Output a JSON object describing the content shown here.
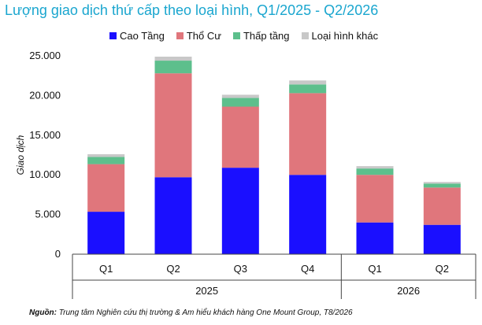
{
  "title": "Lượng giao dịch thứ cấp theo loại hình, Q1/2025 - Q2/2026",
  "source": {
    "label": "Nguồn:",
    "text": " Trung tâm Nghiên cứu thị trường & Am hiểu khách hàng One Mount Group, T8/2026"
  },
  "colors": {
    "cao_tang": "#1a0fff",
    "tho_cu": "#e0767c",
    "thap_tang": "#5dbf8c",
    "khac": "#c8c8c8"
  },
  "chart_data": {
    "type": "bar",
    "stacked": true,
    "categories": [
      "Q1",
      "Q2",
      "Q3",
      "Q4",
      "Q1",
      "Q2"
    ],
    "groups": [
      {
        "label": "2025",
        "categories": [
          "Q1",
          "Q2",
          "Q3",
          "Q4"
        ]
      },
      {
        "label": "2026",
        "categories": [
          "Q1",
          "Q2"
        ]
      }
    ],
    "series": [
      {
        "name": "Cao Tầng",
        "color": "#1a0fff",
        "values": [
          5350,
          9700,
          10900,
          10000,
          4000,
          3700
        ]
      },
      {
        "name": "Thổ Cư",
        "color": "#e0767c",
        "values": [
          6000,
          13100,
          7700,
          10300,
          6000,
          4700
        ]
      },
      {
        "name": "Thấp tầng",
        "color": "#5dbf8c",
        "values": [
          900,
          1600,
          1100,
          1100,
          800,
          500
        ]
      },
      {
        "name": "Loại hình khác",
        "color": "#c8c8c8",
        "values": [
          350,
          500,
          400,
          500,
          300,
          200
        ]
      }
    ],
    "ylabel": "Giao dịch",
    "ylim": [
      0,
      25000
    ],
    "yticks": [
      "0",
      "5.000",
      "10.000",
      "15.000",
      "20.000",
      "25.000"
    ],
    "legend": "top",
    "grid": false
  }
}
